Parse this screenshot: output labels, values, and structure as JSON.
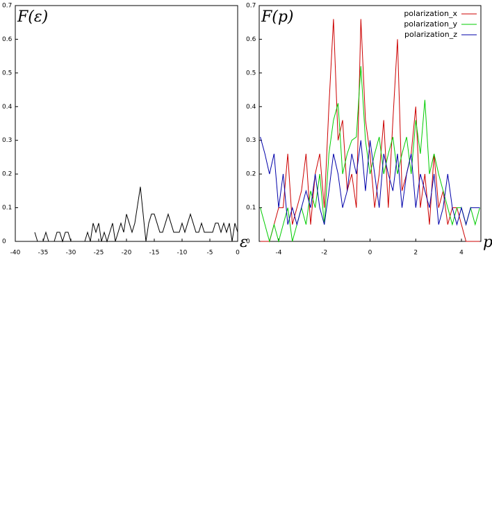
{
  "chart_data": [
    {
      "type": "line",
      "y_label": "F(ε)",
      "x_label": "ε",
      "x": [
        -36.5,
        -36,
        -35.5,
        -35,
        -34.5,
        -34,
        -33.5,
        -33,
        -32.5,
        -32,
        -31.5,
        -31,
        -30.5,
        -30,
        -29.5,
        -29,
        -28.5,
        -28,
        -27.5,
        -27,
        -26.5,
        -26,
        -25.5,
        -25,
        -24.5,
        -24,
        -23.5,
        -23,
        -22.5,
        -22,
        -21.5,
        -21,
        -20.5,
        -20,
        -19.5,
        -19,
        -18.5,
        -18,
        -17.5,
        -17,
        -16.5,
        -16,
        -15.5,
        -15,
        -14.5,
        -14,
        -13.5,
        -13,
        -12.5,
        -12,
        -11.5,
        -11,
        -10.5,
        -10,
        -9.5,
        -9,
        -8.5,
        -8,
        -7.5,
        -7,
        -6.5,
        -6,
        -5.5,
        -5,
        -4.5,
        -4,
        -3.5,
        -3,
        -2.5,
        -2,
        -1.5,
        -1,
        -0.5,
        0
      ],
      "values": [
        0.027,
        0,
        0,
        0,
        0.027,
        0,
        0,
        0,
        0.027,
        0.027,
        0,
        0.027,
        0.027,
        0,
        0,
        0,
        0,
        0,
        0,
        0.027,
        0,
        0.054,
        0.027,
        0.054,
        0,
        0.027,
        0,
        0.027,
        0.054,
        0,
        0.027,
        0.054,
        0.027,
        0.081,
        0.054,
        0.027,
        0.054,
        0.108,
        0.162,
        0.081,
        0,
        0.054,
        0.081,
        0.081,
        0.054,
        0.027,
        0.027,
        0.054,
        0.081,
        0.054,
        0.027,
        0.027,
        0.027,
        0.054,
        0.027,
        0.054,
        0.081,
        0.054,
        0.027,
        0.027,
        0.054,
        0.027,
        0.027,
        0.027,
        0.027,
        0.054,
        0.054,
        0.027,
        0.054,
        0.027,
        0.054,
        0,
        0.054,
        0.027
      ],
      "color": "#000000",
      "xlim": [
        -40,
        0
      ],
      "xticks": [
        -40,
        -35,
        -30,
        -25,
        -20,
        -15,
        -10,
        -5,
        0
      ],
      "ylim": [
        0,
        0.7
      ],
      "yticks": [
        0,
        0.1,
        0.2,
        0.3,
        0.4,
        0.5,
        0.6,
        0.7
      ]
    },
    {
      "type": "line",
      "y_label": "F(p)",
      "x_label": "p",
      "legend": "upper right",
      "x": [
        -4.8,
        -4.6,
        -4.4,
        -4.2,
        -4.0,
        -3.8,
        -3.6,
        -3.4,
        -3.2,
        -3.0,
        -2.8,
        -2.6,
        -2.4,
        -2.2,
        -2.0,
        -1.8,
        -1.6,
        -1.4,
        -1.2,
        -1.0,
        -0.8,
        -0.6,
        -0.4,
        -0.2,
        0,
        0.2,
        0.4,
        0.6,
        0.8,
        1.0,
        1.2,
        1.4,
        1.6,
        1.8,
        2.0,
        2.2,
        2.4,
        2.6,
        2.8,
        3.0,
        3.2,
        3.4,
        3.6,
        3.8,
        4.0,
        4.2,
        4.4,
        4.6,
        4.8
      ],
      "series": [
        {
          "name": "polarization_x",
          "color": "#cc0000",
          "values": [
            0,
            0,
            0,
            0.05,
            0.1,
            0.1,
            0.26,
            0.05,
            0.1,
            0.15,
            0.26,
            0.05,
            0.2,
            0.26,
            0.1,
            0.4,
            0.66,
            0.3,
            0.36,
            0.15,
            0.2,
            0.1,
            0.66,
            0.36,
            0.26,
            0.1,
            0.2,
            0.36,
            0.1,
            0.36,
            0.6,
            0.15,
            0.2,
            0.26,
            0.4,
            0.1,
            0.2,
            0.05,
            0.26,
            0.1,
            0.15,
            0.05,
            0.1,
            0.1,
            0.05,
            0,
            0,
            0,
            0
          ]
        },
        {
          "name": "polarization_y",
          "color": "#00cc00",
          "values": [
            0.1,
            0.05,
            0,
            0.05,
            0,
            0.05,
            0.1,
            0,
            0.05,
            0.1,
            0.05,
            0.15,
            0.1,
            0.2,
            0.05,
            0.26,
            0.36,
            0.41,
            0.2,
            0.26,
            0.3,
            0.31,
            0.52,
            0.3,
            0.2,
            0.26,
            0.31,
            0.2,
            0.26,
            0.31,
            0.2,
            0.26,
            0.31,
            0.2,
            0.36,
            0.26,
            0.42,
            0.2,
            0.26,
            0.2,
            0.15,
            0.1,
            0.05,
            0.1,
            0.1,
            0.05,
            0.1,
            0.05,
            0.1
          ]
        },
        {
          "name": "polarization_z",
          "color": "#0000aa",
          "values": [
            0.31,
            0.26,
            0.2,
            0.26,
            0.1,
            0.2,
            0.05,
            0.1,
            0.05,
            0.1,
            0.15,
            0.1,
            0.2,
            0.1,
            0.05,
            0.15,
            0.26,
            0.2,
            0.1,
            0.15,
            0.26,
            0.2,
            0.3,
            0.15,
            0.3,
            0.2,
            0.1,
            0.26,
            0.2,
            0.15,
            0.26,
            0.1,
            0.2,
            0.26,
            0.1,
            0.2,
            0.15,
            0.1,
            0.2,
            0.05,
            0.1,
            0.2,
            0.1,
            0.05,
            0.1,
            0.05,
            0.1,
            0.1,
            0.1
          ]
        }
      ],
      "xlim": [
        -4.85,
        4.85
      ],
      "xticks": [
        -4,
        -2,
        0,
        2,
        4
      ],
      "ylim": [
        0,
        0.7
      ],
      "yticks": [
        0,
        0.1,
        0.2,
        0.3,
        0.4,
        0.5,
        0.6,
        0.7
      ]
    }
  ]
}
